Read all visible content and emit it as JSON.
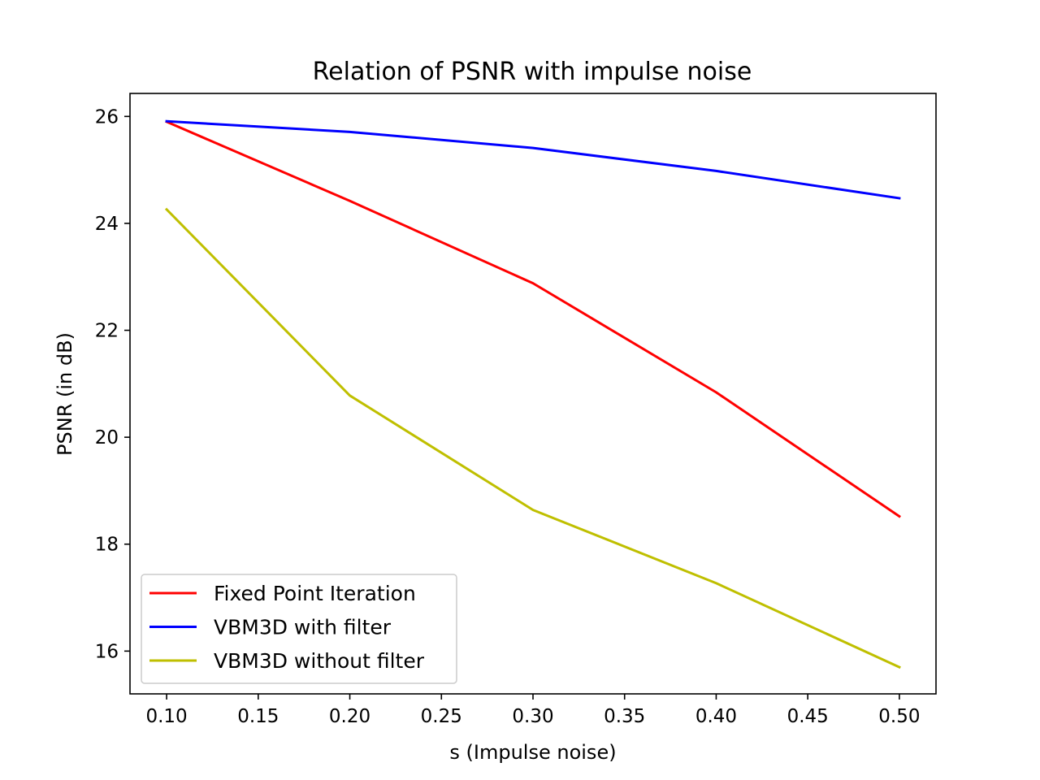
{
  "chart_data": {
    "type": "line",
    "title": "Relation of PSNR with impulse noise",
    "xlabel": "s (Impulse noise)",
    "ylabel": "PSNR (in dB)",
    "x": [
      0.1,
      0.2,
      0.3,
      0.4,
      0.5
    ],
    "xlim": [
      0.08,
      0.52
    ],
    "ylim": [
      15.2,
      26.43
    ],
    "x_ticks": [
      "0.10",
      "0.15",
      "0.20",
      "0.25",
      "0.30",
      "0.35",
      "0.40",
      "0.45",
      "0.50"
    ],
    "y_ticks": [
      "16",
      "18",
      "20",
      "22",
      "24",
      "26"
    ],
    "grid": false,
    "legend_position": "lower-left",
    "series": [
      {
        "name": "Fixed Point Iteration",
        "color": "#ff0000",
        "values": [
          25.9,
          24.42,
          22.88,
          20.84,
          18.52
        ]
      },
      {
        "name": "VBM3D with filter",
        "color": "#0000ff",
        "values": [
          25.91,
          25.71,
          25.41,
          24.98,
          24.47
        ]
      },
      {
        "name": "VBM3D without filter",
        "color": "#bfbf00",
        "values": [
          24.26,
          20.78,
          18.64,
          17.27,
          15.7
        ]
      }
    ]
  }
}
